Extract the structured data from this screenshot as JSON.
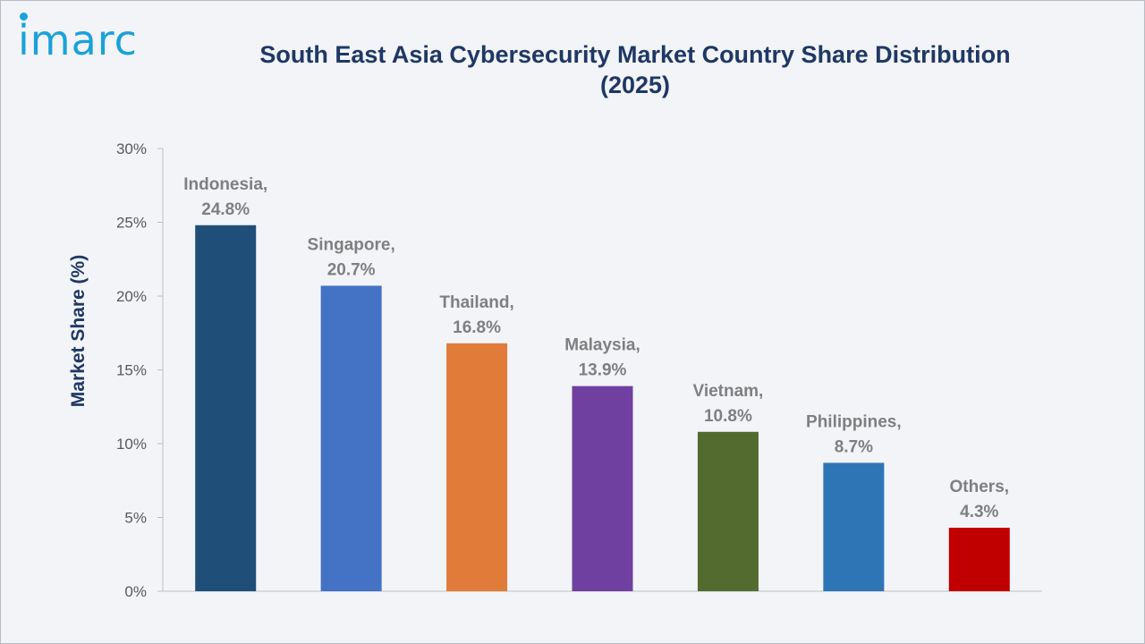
{
  "logo": {
    "text": "imarc"
  },
  "chart_data": {
    "type": "bar",
    "title_line1": "South East Asia Cybersecurity Market Country Share Distribution",
    "title_line2": "(2025)",
    "xlabel": "",
    "ylabel": "Market Share (%)",
    "ylim": [
      0,
      30
    ],
    "yticks": [
      "0%",
      "5%",
      "10%",
      "15%",
      "20%",
      "25%",
      "30%"
    ],
    "grid": false,
    "legend": "none",
    "categories": [
      "Indonesia",
      "Singapore",
      "Thailand",
      "Malaysia",
      "Vietnam",
      "Philippines",
      "Others"
    ],
    "values": [
      24.8,
      20.7,
      16.8,
      13.9,
      10.8,
      8.7,
      4.3
    ],
    "data_labels": [
      "24.8%",
      "20.7%",
      "16.8%",
      "13.9%",
      "10.8%",
      "8.7%",
      "4.3%"
    ],
    "colors": [
      "#1f4e79",
      "#4472c4",
      "#e07b39",
      "#7040a0",
      "#546b2f",
      "#2e75b6",
      "#c00000"
    ]
  }
}
